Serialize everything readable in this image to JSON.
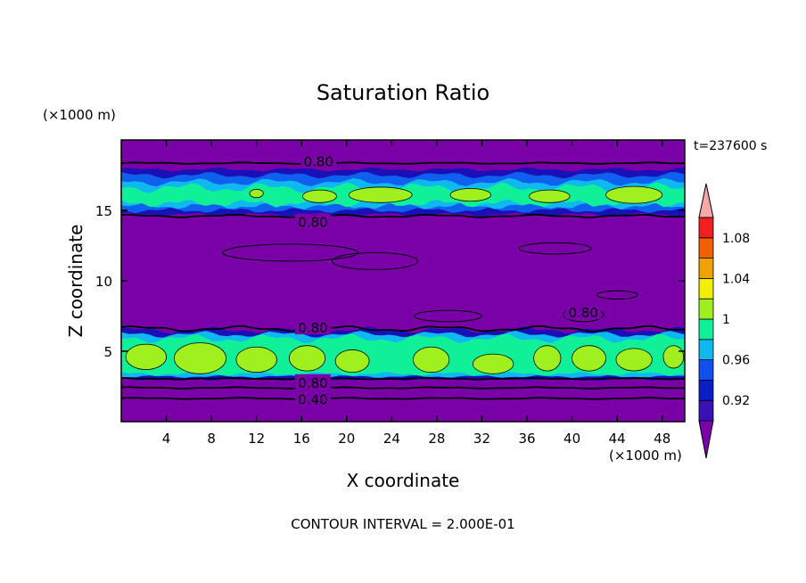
{
  "chart_data": {
    "type": "contour",
    "title": "Saturation Ratio",
    "xlabel": "X coordinate",
    "ylabel": "Z coordinate",
    "x_unit": "(×1000 m)",
    "y_unit": "(×1000 m)",
    "time_label": "t=237600 s",
    "footer": "CONTOUR INTERVAL = 2.000E-01",
    "xlim": [
      0,
      50
    ],
    "ylim": [
      0,
      20
    ],
    "xticks": [
      "4",
      "8",
      "12",
      "16",
      "20",
      "24",
      "28",
      "32",
      "36",
      "40",
      "44",
      "48"
    ],
    "yticks": [
      "5",
      "10",
      "15"
    ],
    "contour_labels": [
      {
        "text": "0.80",
        "x": 17.5,
        "z": 18.5
      },
      {
        "text": "0.80",
        "x": 17.0,
        "z": 14.2
      },
      {
        "text": "0.80",
        "x": 41.0,
        "z": 7.8
      },
      {
        "text": "0.80",
        "x": 17.0,
        "z": 6.7
      },
      {
        "text": "0.80",
        "x": 17.0,
        "z": 2.8
      },
      {
        "text": "0.40",
        "x": 17.0,
        "z": 1.6
      }
    ],
    "colorbar": {
      "tick_labels": [
        "0.92",
        "0.96",
        "1",
        "1.04",
        "1.08"
      ],
      "levels": [
        0.9,
        0.92,
        0.94,
        0.96,
        0.98,
        1.0,
        1.02,
        1.04,
        1.06,
        1.08,
        1.1
      ],
      "colors": [
        "#7a00a8",
        "#3a10b8",
        "#0a1ec8",
        "#1050f0",
        "#10b8f0",
        "#10f098",
        "#a0f020",
        "#f0f000",
        "#f0a000",
        "#f06000",
        "#f02020",
        "#f4a8a8"
      ]
    },
    "field_colors": {
      "background": "#7a00a8",
      "dark_blue": "#1a10b8",
      "blue": "#1060f0",
      "cyan": "#10b8f0",
      "green": "#10f098",
      "lime": "#a0f020"
    }
  }
}
